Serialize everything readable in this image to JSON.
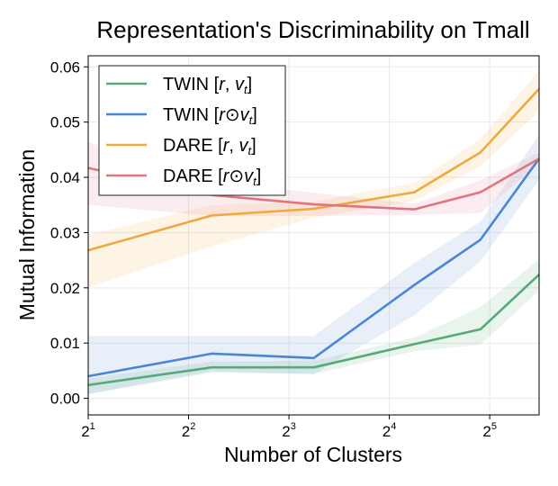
{
  "chart_data": {
    "type": "line",
    "title": "Representation's Discriminability on Tmall",
    "xlabel": "Number of Clusters",
    "ylabel": "Mutual Information",
    "xscale": "log2",
    "xlim": [
      2,
      45
    ],
    "ylim": [
      -0.003,
      0.062
    ],
    "x_ticks": [
      {
        "value": 2,
        "base": "2",
        "exp": "1"
      },
      {
        "value": 4,
        "base": "2",
        "exp": "2"
      },
      {
        "value": 8,
        "base": "2",
        "exp": "3"
      },
      {
        "value": 16,
        "base": "2",
        "exp": "4"
      },
      {
        "value": 32,
        "base": "2",
        "exp": "5"
      }
    ],
    "y_ticks": [
      {
        "value": 0.0,
        "label": "0.00"
      },
      {
        "value": 0.01,
        "label": "0.01"
      },
      {
        "value": 0.02,
        "label": "0.02"
      },
      {
        "value": 0.03,
        "label": "0.03"
      },
      {
        "value": 0.04,
        "label": "0.04"
      },
      {
        "value": 0.05,
        "label": "0.05"
      },
      {
        "value": 0.06,
        "label": "0.06"
      }
    ],
    "grid": true,
    "legend_position": "top-left",
    "series": [
      {
        "name": "TWIN [r, v_t]",
        "legend": {
          "pre": "TWIN [",
          "r": "r",
          "mid": ", ",
          "v": "v",
          "sub": "t",
          "post": "]"
        },
        "color": "#55aa77",
        "x": [
          2,
          4.7,
          9.5,
          19,
          30,
          45
        ],
        "y": [
          0.0024,
          0.0056,
          0.0056,
          0.0098,
          0.0125,
          0.0224
        ],
        "lower": [
          0.0008,
          0.0046,
          0.0044,
          0.0085,
          0.0097,
          0.0195
        ],
        "upper": [
          0.0036,
          0.0067,
          0.0068,
          0.011,
          0.0165,
          0.0252
        ]
      },
      {
        "name": "TWIN [r⊙v_t]",
        "legend": {
          "pre": "TWIN [",
          "r": "r",
          "mid": "⊙",
          "v": "v",
          "sub": "t",
          "post": "]"
        },
        "color": "#4a86d4",
        "x": [
          2,
          4.7,
          9.5,
          19,
          30,
          45
        ],
        "y": [
          0.004,
          0.0081,
          0.0073,
          0.0205,
          0.0287,
          0.0434
        ],
        "lower": [
          0.0008,
          0.0049,
          0.0044,
          0.015,
          0.0248,
          0.0395
        ],
        "upper": [
          0.0113,
          0.0113,
          0.0113,
          0.0245,
          0.032,
          0.0478
        ]
      },
      {
        "name": "DARE [r, v_t]",
        "legend": {
          "pre": "DARE [",
          "r": "r",
          "mid": ", ",
          "v": "v",
          "sub": "t",
          "post": "]"
        },
        "color": "#eeaa3c",
        "x": [
          2,
          4.7,
          9.5,
          19,
          30,
          45
        ],
        "y": [
          0.0268,
          0.0331,
          0.0343,
          0.0373,
          0.0445,
          0.056
        ],
        "lower": [
          0.0201,
          0.0275,
          0.0327,
          0.0357,
          0.042,
          0.052
        ],
        "upper": [
          0.0296,
          0.035,
          0.0356,
          0.039,
          0.047,
          0.0593
        ]
      },
      {
        "name": "DARE [r⊙v_t]",
        "legend": {
          "pre": "DARE [",
          "r": "r",
          "mid": "⊙",
          "v": "v",
          "sub": "t",
          "post": "]"
        },
        "color": "#e07582",
        "x": [
          2,
          4.7,
          9.5,
          19,
          30,
          45
        ],
        "y": [
          0.0417,
          0.0368,
          0.0351,
          0.0342,
          0.0373,
          0.0434
        ],
        "lower": [
          0.035,
          0.033,
          0.033,
          0.0332,
          0.0335,
          0.0425
        ],
        "upper": [
          0.0464,
          0.0395,
          0.0372,
          0.0352,
          0.0395,
          0.0445
        ]
      }
    ]
  }
}
